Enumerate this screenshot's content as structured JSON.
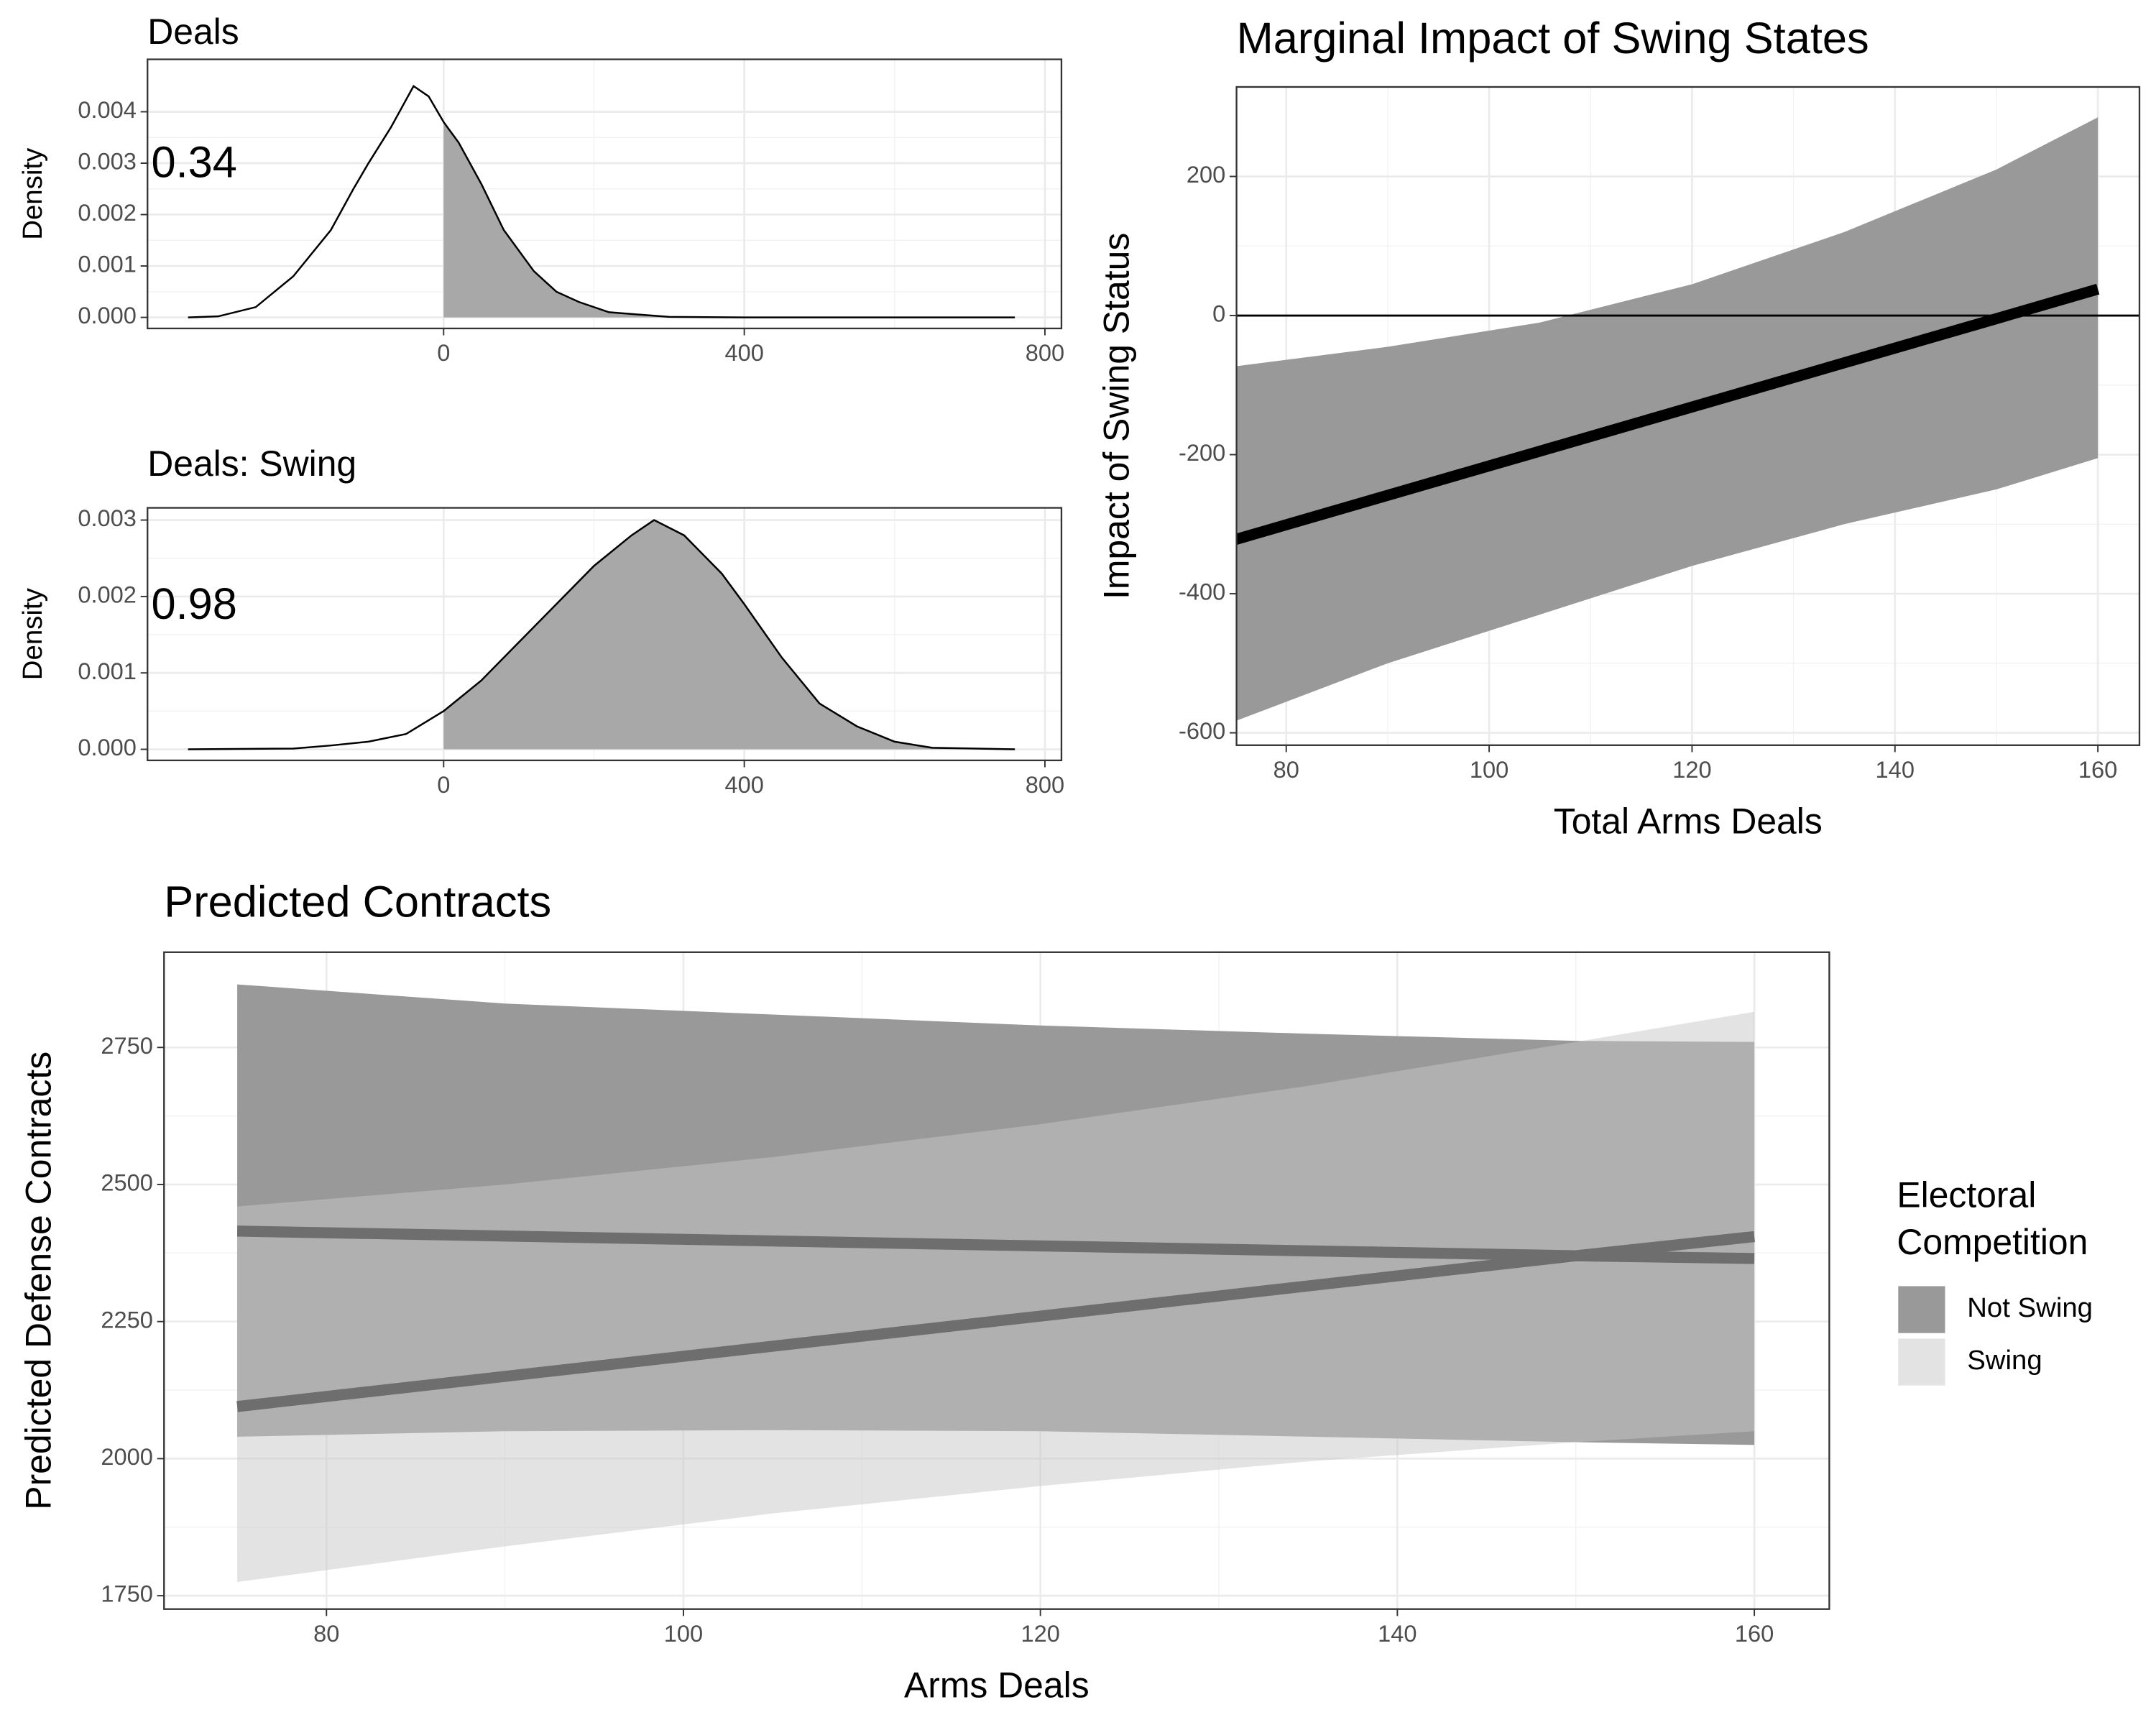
{
  "chart_data": [
    {
      "type": "density",
      "title": "Deals",
      "ylabel": "Density",
      "annotation": "0.34",
      "shade_from": 0,
      "x": [
        -340,
        -300,
        -250,
        -200,
        -150,
        -120,
        -100,
        -70,
        -40,
        -20,
        0,
        20,
        50,
        80,
        120,
        150,
        180,
        220,
        300,
        400,
        760
      ],
      "y": [
        0,
        2e-05,
        0.0002,
        0.0008,
        0.0017,
        0.0025,
        0.003,
        0.0037,
        0.0045,
        0.0043,
        0.0038,
        0.0034,
        0.0026,
        0.0017,
        0.0009,
        0.0005,
        0.0003,
        0.0001,
        1e-05,
        0,
        0
      ],
      "color": "#a8a8a8",
      "xlim": [
        -394,
        822
      ],
      "ylim": [
        -0.000215,
        0.00502
      ],
      "xticks": [
        0,
        400,
        800
      ],
      "yticks": [
        {
          "value": 0,
          "label": "0.000"
        },
        {
          "value": 0.001,
          "label": "0.001"
        },
        {
          "value": 0.002,
          "label": "0.002"
        },
        {
          "value": 0.003,
          "label": "0.003"
        },
        {
          "value": 0.004,
          "label": "0.004"
        }
      ],
      "grid": true
    },
    {
      "type": "density",
      "title": "Deals: Swing",
      "ylabel": "Density",
      "annotation": "0.98",
      "shade_from": 0,
      "x": [
        -340,
        -200,
        -150,
        -100,
        -50,
        0,
        50,
        100,
        150,
        200,
        250,
        280,
        320,
        370,
        400,
        450,
        500,
        550,
        600,
        650,
        760
      ],
      "y": [
        0,
        1e-05,
        5e-05,
        0.0001,
        0.0002,
        0.0005,
        0.0009,
        0.0014,
        0.0019,
        0.0024,
        0.0028,
        0.003,
        0.0028,
        0.0023,
        0.0019,
        0.0012,
        0.0006,
        0.0003,
        0.0001,
        2e-05,
        0
      ],
      "color": "#a8a8a8",
      "xlim": [
        -394,
        822
      ],
      "ylim": [
        -0.000145,
        0.00316
      ],
      "xticks": [
        0,
        400,
        800
      ],
      "yticks": [
        {
          "value": 0,
          "label": "0.000"
        },
        {
          "value": 0.001,
          "label": "0.001"
        },
        {
          "value": 0.002,
          "label": "0.002"
        },
        {
          "value": 0.003,
          "label": "0.003"
        }
      ],
      "grid": true
    },
    {
      "type": "ribbon",
      "title": "Marginal Impact of Swing States",
      "xlabel": "Total Arms Deals",
      "ylabel": "Impact of Swing Status",
      "hline": 0,
      "x": [
        75,
        90,
        105,
        120,
        135,
        150,
        160
      ],
      "series": [
        {
          "color": "#999999",
          "line_color": "#000000",
          "opacity": 1,
          "values": [
            -322,
            -258.5,
            -195,
            -131.5,
            -68,
            -4.5,
            38
          ],
          "lower": [
            -583,
            -500,
            -430,
            -360,
            -300,
            -250,
            -205
          ],
          "upper": [
            -73,
            -45,
            -10,
            45,
            120,
            210,
            285
          ]
        }
      ],
      "xlim": [
        75.1,
        164.1
      ],
      "ylim": [
        -617.8,
        328.7
      ],
      "xticks": [
        80,
        100,
        120,
        140,
        160
      ],
      "yticks": [
        -600,
        -400,
        -200,
        0,
        200
      ],
      "grid": true
    },
    {
      "type": "ribbon",
      "title": "Predicted Contracts",
      "xlabel": "Arms Deals",
      "ylabel": "Predicted Defense Contracts",
      "legend_title": [
        "Electoral",
        "Competition"
      ],
      "x": [
        75,
        90,
        105,
        120,
        135,
        150,
        160
      ],
      "series": [
        {
          "name": "Not Swing",
          "color": "#999999",
          "line_color": "#6e6e6e",
          "opacity": 1,
          "values": [
            2415,
            2406,
            2397,
            2388,
            2379,
            2370,
            2365
          ],
          "lower": [
            2040,
            2050,
            2052,
            2050,
            2040,
            2030,
            2025
          ],
          "upper": [
            2865,
            2830,
            2810,
            2790,
            2775,
            2762,
            2760
          ]
        },
        {
          "name": "Swing",
          "color": "#c8c8c8",
          "line_color": "#6e6e6e",
          "opacity": 0.5,
          "values": [
            2095,
            2150,
            2205,
            2260,
            2315,
            2370,
            2405
          ],
          "lower": [
            1775,
            1840,
            1900,
            1950,
            1995,
            2030,
            2050
          ],
          "upper": [
            2460,
            2500,
            2550,
            2610,
            2680,
            2760,
            2815
          ]
        }
      ],
      "xlim": [
        70.9,
        164.2
      ],
      "ylim": [
        1725.6,
        2923.7
      ],
      "xticks": [
        80,
        100,
        120,
        140,
        160
      ],
      "yticks": [
        1750,
        2000,
        2250,
        2500,
        2750
      ],
      "grid": true
    }
  ]
}
